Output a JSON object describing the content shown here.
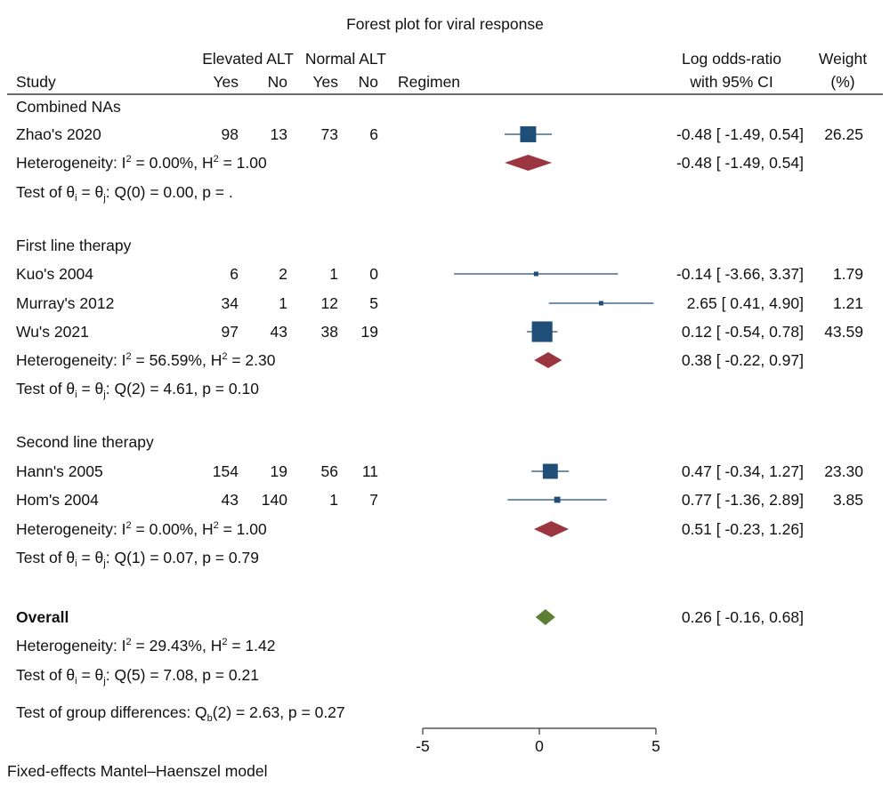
{
  "chart_data": {
    "type": "forest",
    "title": "Forest plot for viral response",
    "header": {
      "study": "Study",
      "group1": "Elevated ALT",
      "group2": "Normal ALT",
      "yes": "Yes",
      "no": "No",
      "regimen": "Regimen",
      "effect_line1": "Log odds-ratio",
      "effect_line2": "with 95% CI",
      "weight_line1": "Weight",
      "weight_line2": "(%)"
    },
    "groups": [
      {
        "name": "Combined NAs",
        "studies": [
          {
            "study": "Zhao's 2020",
            "elev_yes": "98",
            "elev_no": "13",
            "norm_yes": "73",
            "norm_no": "6",
            "estimate": -0.48,
            "lower": -1.49,
            "upper": 0.54,
            "ci_text": "-0.48 [ -1.49,  0.54]",
            "weight": "26.25"
          }
        ],
        "pooled": {
          "estimate": -0.48,
          "lower": -1.49,
          "upper": 0.54,
          "ci_text": "-0.48 [ -1.49,  0.54]"
        },
        "heterogeneity": {
          "i2": "0.00%",
          "h2": "1.00"
        },
        "test_text": ": Q(0) = 0.00, p = ."
      },
      {
        "name": "First line therapy",
        "studies": [
          {
            "study": "Kuo's 2004",
            "elev_yes": "6",
            "elev_no": "2",
            "norm_yes": "1",
            "norm_no": "0",
            "estimate": -0.14,
            "lower": -3.66,
            "upper": 3.37,
            "ci_text": "-0.14 [ -3.66,  3.37]",
            "weight": "1.79"
          },
          {
            "study": "Murray's 2012",
            "elev_yes": "34",
            "elev_no": "1",
            "norm_yes": "12",
            "norm_no": "5",
            "estimate": 2.65,
            "lower": 0.41,
            "upper": 4.9,
            "ci_text": "2.65 [  0.41,  4.90]",
            "weight": "1.21"
          },
          {
            "study": "Wu's 2021",
            "elev_yes": "97",
            "elev_no": "43",
            "norm_yes": "38",
            "norm_no": "19",
            "estimate": 0.12,
            "lower": -0.54,
            "upper": 0.78,
            "ci_text": "0.12 [ -0.54,  0.78]",
            "weight": "43.59"
          }
        ],
        "pooled": {
          "estimate": 0.38,
          "lower": -0.22,
          "upper": 0.97,
          "ci_text": "0.38 [ -0.22,  0.97]"
        },
        "heterogeneity": {
          "i2": "56.59%",
          "h2": "2.30"
        },
        "test_text": ": Q(2) = 4.61, p = 0.10"
      },
      {
        "name": "Second line therapy",
        "studies": [
          {
            "study": "Hann's 2005",
            "elev_yes": "154",
            "elev_no": "19",
            "norm_yes": "56",
            "norm_no": "11",
            "estimate": 0.47,
            "lower": -0.34,
            "upper": 1.27,
            "ci_text": "0.47 [ -0.34,  1.27]",
            "weight": "23.30"
          },
          {
            "study": "Hom's 2004",
            "elev_yes": "43",
            "elev_no": "140",
            "norm_yes": "1",
            "norm_no": "7",
            "estimate": 0.77,
            "lower": -1.36,
            "upper": 2.89,
            "ci_text": "0.77 [ -1.36,  2.89]",
            "weight": "3.85"
          }
        ],
        "pooled": {
          "estimate": 0.51,
          "lower": -0.23,
          "upper": 1.26,
          "ci_text": "0.51 [ -0.23,  1.26]"
        },
        "heterogeneity": {
          "i2": "0.00%",
          "h2": "1.00"
        },
        "test_text": ": Q(1) = 0.07, p = 0.79"
      }
    ],
    "overall": {
      "label": "Overall",
      "estimate": 0.26,
      "lower": -0.16,
      "upper": 0.68,
      "ci_text": "0.26 [ -0.16,  0.68]",
      "heterogeneity": {
        "i2": "29.43%",
        "h2": "1.42"
      },
      "test_text": ": Q(5) = 7.08, p = 0.21",
      "group_diff_text": "Test of group differences: Q",
      "group_diff_sub": "b",
      "group_diff_rest": "(2) = 2.63, p = 0.27"
    },
    "labels": {
      "heterogeneity_prefix": "Heterogeneity: I",
      "h2_prefix": ", H",
      "sup2": "2",
      "test_prefix": "Test of θ",
      "sub_i": "i",
      "test_mid": " = θ",
      "sub_j": "j"
    },
    "xaxis": {
      "ticks": [
        -5,
        0,
        5
      ],
      "tick_labels": [
        "-5",
        "0",
        "5"
      ],
      "range": [
        -5,
        5
      ]
    },
    "footnote": "Fixed-effects Mantel–Haenszel model",
    "colors": {
      "study_marker": "#1f4e79",
      "subgroup_diamond": "#9b3540",
      "overall_diamond": "#5a7f35",
      "ci_line": "#1f4e79",
      "text": "#111111",
      "axis": "#333333"
    }
  }
}
